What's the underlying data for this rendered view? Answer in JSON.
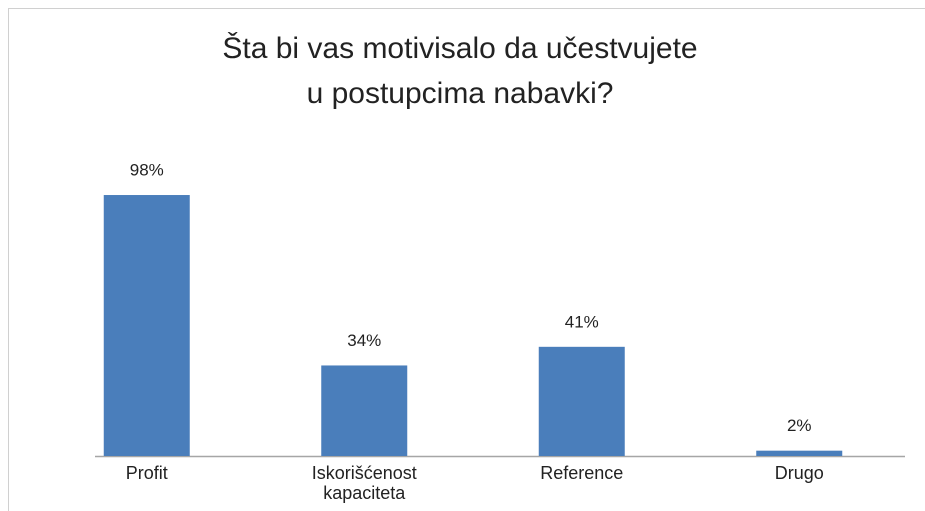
{
  "chart_data": {
    "type": "bar",
    "title": [
      "Šta bi vas motivisalo da učestvujete",
      "u postupcima nabavki?"
    ],
    "categories": [
      "Profit",
      "Iskorišćenost kapaciteta",
      "Reference",
      "Drugo"
    ],
    "values": [
      98,
      34,
      41,
      2
    ],
    "value_labels": [
      "98%",
      "34%",
      "41%",
      "2%"
    ],
    "color": "#4a7ebb"
  }
}
